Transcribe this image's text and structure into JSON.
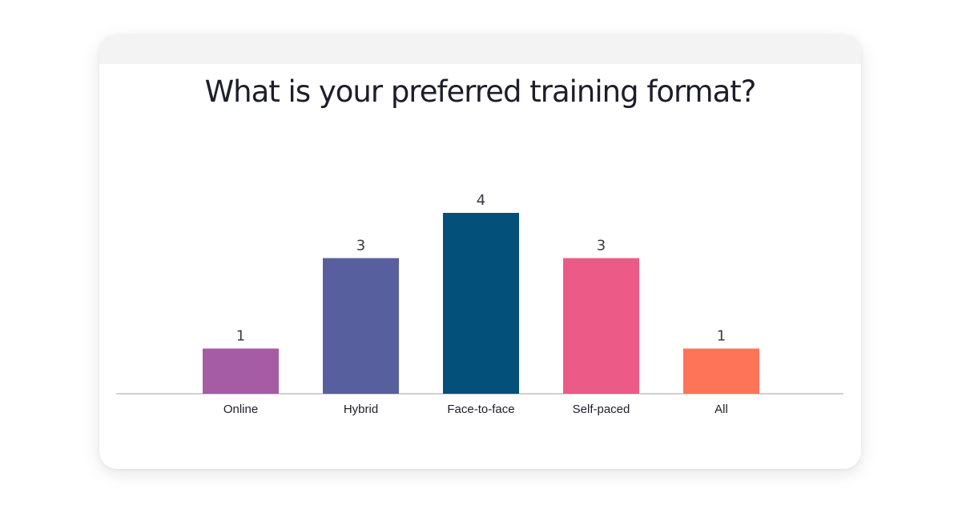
{
  "chart_data": {
    "type": "bar",
    "title": "What is your preferred training format?",
    "categories": [
      "Online",
      "Hybrid",
      "Face-to-face",
      "Self-paced",
      "All"
    ],
    "values": [
      1,
      3,
      4,
      3,
      1
    ],
    "colors": [
      "#a55ca5",
      "#575f9f",
      "#03507b",
      "#ec5b88",
      "#fe7459"
    ],
    "axis_color": "#b3b3b8",
    "ylim": [
      0,
      4
    ],
    "grid": false,
    "legend": "none"
  }
}
